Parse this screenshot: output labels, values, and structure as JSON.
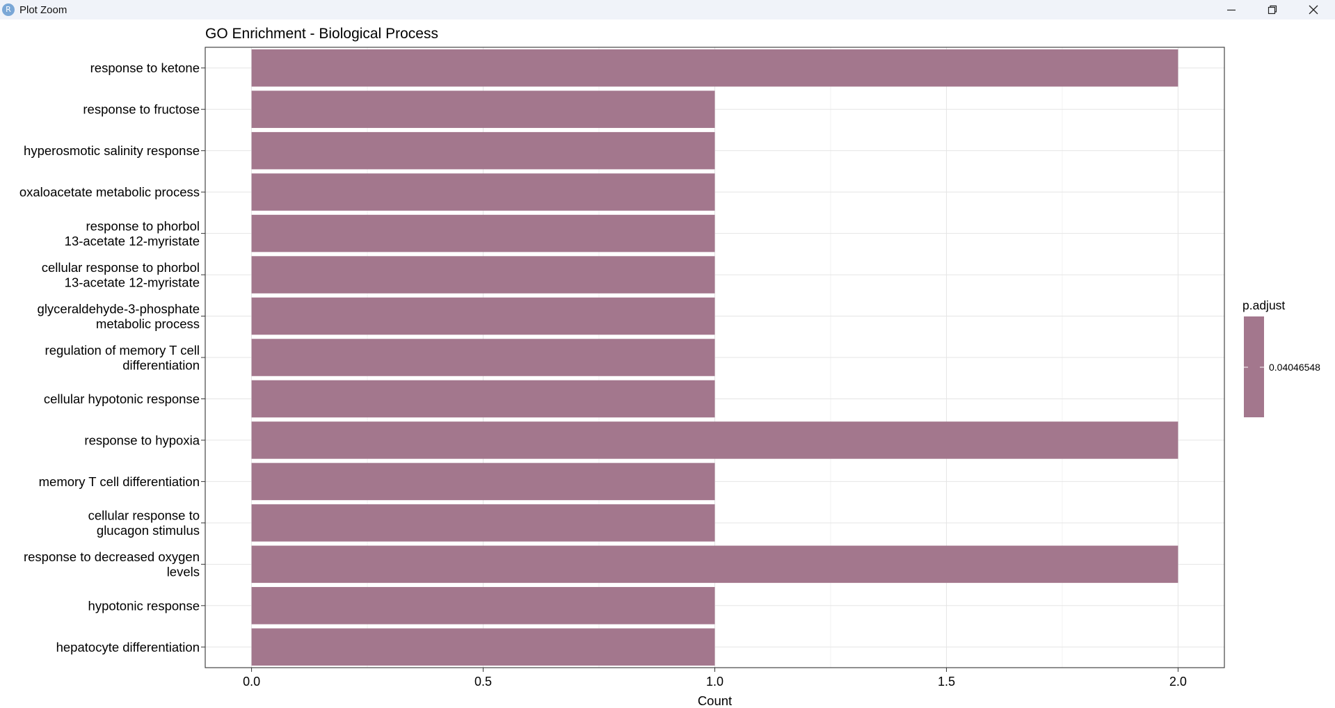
{
  "window": {
    "title": "Plot Zoom",
    "icon": "r-icon",
    "controls": [
      "minimize-icon",
      "restore-icon",
      "close-icon"
    ]
  },
  "chart_data": {
    "type": "bar",
    "orientation": "horizontal",
    "title": "GO Enrichment - Biological Process",
    "xlabel": "Count",
    "ylabel": "",
    "categories": [
      "response to ketone",
      "response to fructose",
      "hyperosmotic salinity response",
      "oxaloacetate metabolic process",
      "response to phorbol\n13-acetate 12-myristate",
      "cellular response to phorbol\n13-acetate 12-myristate",
      "glyceraldehyde-3-phosphate\nmetabolic process",
      "regulation of memory T cell\ndifferentiation",
      "cellular hypotonic response",
      "response to hypoxia",
      "memory T cell differentiation",
      "cellular response to\nglucagon stimulus",
      "response to decreased oxygen\nlevels",
      "hypotonic response",
      "hepatocyte differentiation"
    ],
    "values": [
      2,
      1,
      1,
      1,
      1,
      1,
      1,
      1,
      1,
      2,
      1,
      1,
      2,
      1,
      1
    ],
    "xlim": [
      -0.1,
      2.1
    ],
    "xticks": [
      "0.0",
      "0.5",
      "1.0",
      "1.5",
      "2.0"
    ],
    "grid": true,
    "bar_color": "#a3778d",
    "legend": {
      "title": "p.adjust",
      "label": "0.04046548",
      "placement": "right"
    }
  }
}
